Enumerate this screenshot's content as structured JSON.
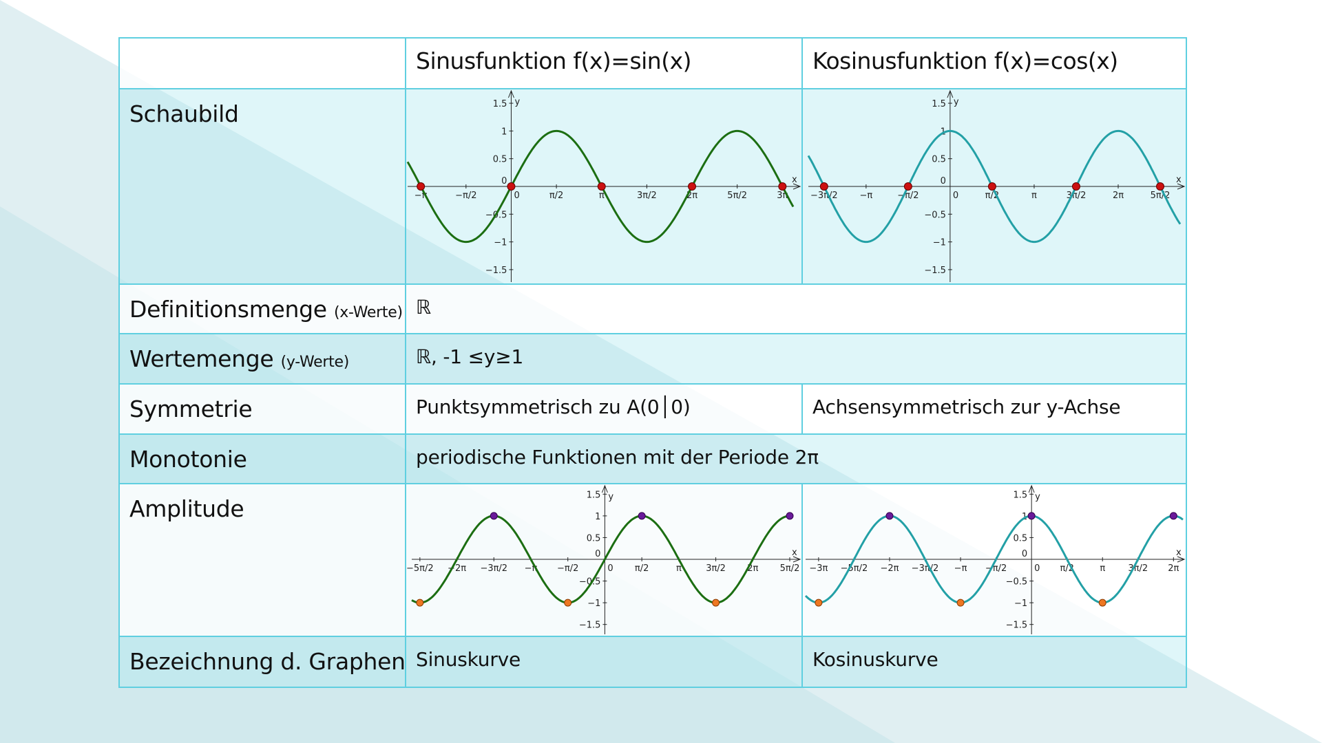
{
  "header": {
    "sin_title": "Sinusfunktion f(x)=sin(x)",
    "cos_title": "Kosinusfunktion  f(x)=cos(x)"
  },
  "rows": {
    "schaubild": {
      "label": "Schaubild"
    },
    "definition": {
      "label": "Definitionsmenge",
      "hint": "(x-Werte)",
      "value": "ℝ"
    },
    "werte": {
      "label": "Wertemenge",
      "hint": "(y-Werte)",
      "value": "ℝ, -1 ≤y≥1"
    },
    "symmetrie": {
      "label": "Symmetrie",
      "sin_value": "Punktsymmetrisch zu A(0│0)",
      "cos_value": "Achsensymmetrisch zur y-Achse"
    },
    "monotonie": {
      "label": "Monotonie",
      "value": "periodische Funktionen mit der Periode 2π"
    },
    "amplitude": {
      "label": "Amplitude"
    },
    "bezeichnung": {
      "label": "Bezeichnung d. Graphen",
      "sin_value": "Sinuskurve",
      "cos_value": "Kosinuskurve"
    }
  },
  "colors": {
    "sin_curve": "#1c6e12",
    "cos_curve": "#23a0a6",
    "zero_point": "#cc1111",
    "max_point": "#6a1a9a",
    "min_point": "#ee7722",
    "table_border": "#5fcfe0"
  },
  "chart_data": [
    {
      "type": "line",
      "function": "sin(x)",
      "x_tick_labels": [
        "−π",
        "−π/2",
        "0",
        "π/2",
        "π",
        "3π/2",
        "2π",
        "5π/2",
        "3π"
      ],
      "y_tick_labels": [
        "1.5",
        "1",
        "0.5",
        "0",
        "−0.5",
        "−1",
        "−1.5"
      ],
      "xlabel": "x",
      "ylabel": "y",
      "xlim": [
        -3.6,
        9.8
      ],
      "ylim": [
        -1.6,
        1.6
      ],
      "marked_points": {
        "zeros": [
          [
            -3.14159,
            0
          ],
          [
            0,
            0
          ],
          [
            3.14159,
            0
          ],
          [
            6.28319,
            0
          ],
          [
            9.42478,
            0
          ]
        ]
      }
    },
    {
      "type": "line",
      "function": "cos(x)",
      "x_tick_labels": [
        "−3π/2",
        "−π",
        "−π/2",
        "0",
        "π/2",
        "π",
        "3π/2",
        "2π",
        "5π/2"
      ],
      "y_tick_labels": [
        "1.5",
        "1",
        "0.5",
        "0",
        "−0.5",
        "−1",
        "−1.5"
      ],
      "xlabel": "x",
      "ylabel": "y",
      "xlim": [
        -5.3,
        8.6
      ],
      "ylim": [
        -1.6,
        1.6
      ],
      "marked_points": {
        "zeros": [
          [
            -4.71239,
            0
          ],
          [
            -1.5708,
            0
          ],
          [
            1.5708,
            0
          ],
          [
            4.71239,
            0
          ],
          [
            7.85398,
            0
          ]
        ]
      }
    },
    {
      "type": "line",
      "function": "sin(x)",
      "x_tick_labels": [
        "−5π/2",
        "−2π",
        "−3π/2",
        "−π",
        "−π/2",
        "0",
        "π/2",
        "π",
        "3π/2",
        "2π",
        "5π/2"
      ],
      "y_tick_labels": [
        "1.5",
        "1",
        "0.5",
        "0",
        "−0.5",
        "−1",
        "−1.5"
      ],
      "xlabel": "x",
      "ylabel": "y",
      "xlim": [
        -8.2,
        8.0
      ],
      "ylim": [
        -1.6,
        1.6
      ],
      "marked_points": {
        "maxima": [
          [
            -4.71239,
            1
          ],
          [
            1.5708,
            1
          ],
          [
            7.85398,
            1
          ]
        ],
        "minima": [
          [
            -7.85398,
            -1
          ],
          [
            -1.5708,
            -1
          ],
          [
            4.71239,
            -1
          ]
        ]
      }
    },
    {
      "type": "line",
      "function": "cos(x)",
      "x_tick_labels": [
        "−3π",
        "−5π/2",
        "−2π",
        "−3π/2",
        "−π",
        "−π/2",
        "0",
        "π/2",
        "π",
        "3π/2",
        "2π"
      ],
      "y_tick_labels": [
        "1.5",
        "1",
        "0.5",
        "0",
        "−0.5",
        "−1",
        "−1.5"
      ],
      "xlabel": "x",
      "ylabel": "y",
      "xlim": [
        -10.0,
        6.7
      ],
      "ylim": [
        -1.6,
        1.6
      ],
      "marked_points": {
        "maxima": [
          [
            -6.28319,
            1
          ],
          [
            0,
            1
          ],
          [
            6.28319,
            1
          ]
        ],
        "minima": [
          [
            -9.42478,
            -1
          ],
          [
            -3.14159,
            -1
          ],
          [
            3.14159,
            -1
          ]
        ]
      }
    }
  ]
}
